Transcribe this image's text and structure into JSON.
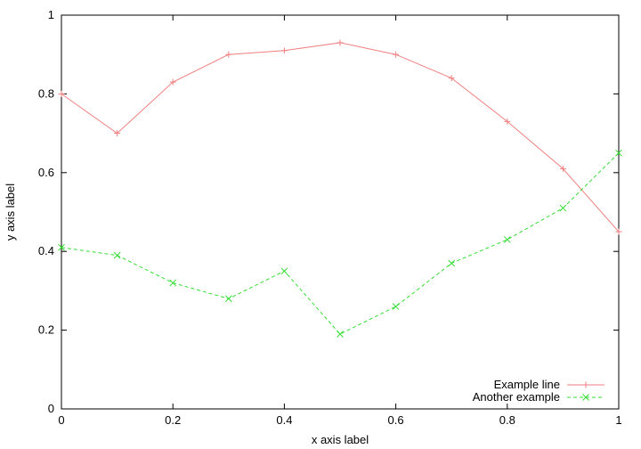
{
  "chart_data": {
    "type": "line",
    "xlabel": "x axis label",
    "ylabel": "y axis label",
    "xlim": [
      0,
      1
    ],
    "ylim": [
      0,
      1
    ],
    "x_ticks": [
      "0",
      "0.2",
      "0.4",
      "0.6",
      "0.8",
      "1"
    ],
    "y_ticks": [
      "0",
      "0.2",
      "0.4",
      "0.6",
      "0.8",
      "1"
    ],
    "grid": false,
    "legend_position": "bottom-right",
    "series": [
      {
        "name": "Example line",
        "color": "#f08080",
        "marker": "plus",
        "dash": "solid",
        "x": [
          0,
          0.1,
          0.2,
          0.3,
          0.4,
          0.5,
          0.6,
          0.7,
          0.8,
          0.9,
          1.0
        ],
        "values": [
          0.8,
          0.7,
          0.83,
          0.9,
          0.91,
          0.93,
          0.9,
          0.84,
          0.73,
          0.61,
          0.45
        ]
      },
      {
        "name": "Another example",
        "color": "#33dd33",
        "marker": "cross",
        "dash": "dashed",
        "x": [
          0,
          0.1,
          0.2,
          0.3,
          0.4,
          0.5,
          0.6,
          0.7,
          0.8,
          0.9,
          1.0
        ],
        "values": [
          0.41,
          0.39,
          0.32,
          0.28,
          0.35,
          0.19,
          0.26,
          0.37,
          0.43,
          0.51,
          0.65
        ]
      }
    ]
  }
}
